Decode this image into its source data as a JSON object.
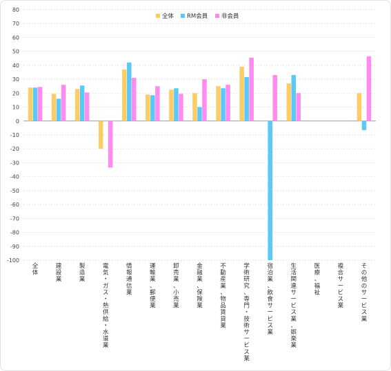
{
  "chart_data": {
    "type": "bar",
    "categories": [
      "全体",
      "建設業",
      "製造業",
      "電気・ガス・熱供給・水道業",
      "情報通信業",
      "運輸業、郵便業",
      "卸売業、小売業",
      "金融業、保険業",
      "不動産業、物品賃貸業",
      "学術研究、専門・技術サービス業",
      "宿泊業、飲食サービス業",
      "生活関連サービス業、娯楽業",
      "医療、福祉",
      "複合サービス業",
      "その他のサービス業"
    ],
    "series": [
      {
        "name": "全体",
        "color": "#FCCD67",
        "values": [
          24,
          19.5,
          23,
          -20,
          37,
          19,
          22.5,
          20,
          25,
          39,
          null,
          27,
          null,
          null,
          20
        ]
      },
      {
        "name": "RM会員",
        "color": "#5BC8F5",
        "values": [
          24,
          16,
          25.5,
          null,
          42,
          18.5,
          23.5,
          10,
          23.5,
          31.5,
          -100,
          33,
          null,
          null,
          -6.5
        ]
      },
      {
        "name": "非会員",
        "color": "#FF8BF0",
        "values": [
          24.5,
          26,
          20.5,
          -33.5,
          31,
          25,
          19.5,
          30,
          26,
          45.5,
          33,
          20,
          null,
          null,
          46.5
        ]
      }
    ],
    "ylim": [
      -100,
      80
    ],
    "yticks": [
      80,
      70,
      60,
      50,
      40,
      30,
      20,
      10,
      0,
      -10,
      -20,
      -30,
      -40,
      -50,
      -60,
      -70,
      -80,
      -90,
      -100
    ],
    "grid": true,
    "legend": "top-center"
  }
}
